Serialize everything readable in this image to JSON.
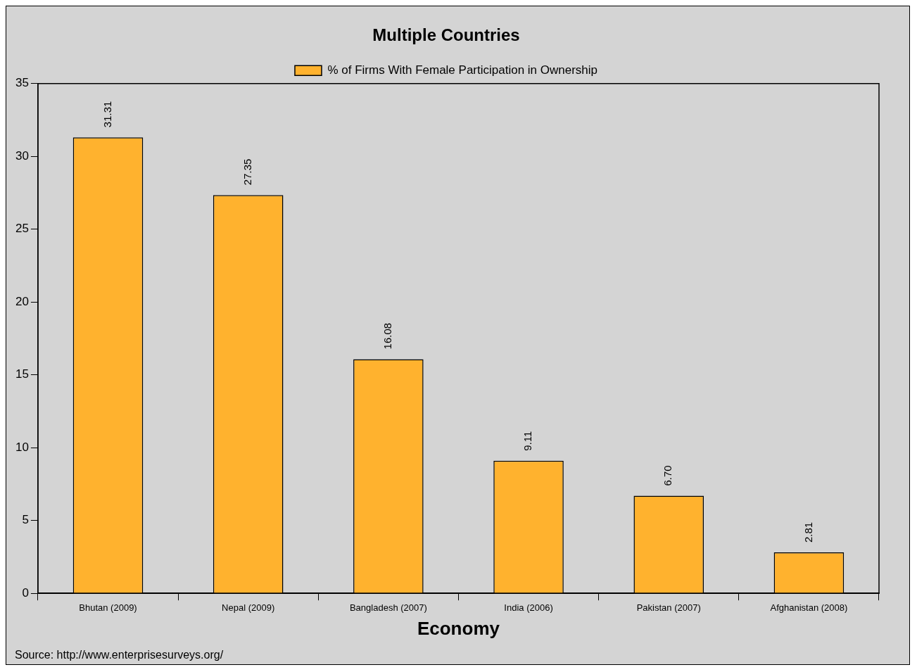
{
  "chart_data": {
    "type": "bar",
    "title": "Multiple Countries",
    "xlabel": "Economy",
    "categories": [
      "Bhutan (2009)",
      "Nepal (2009)",
      "Bangladesh (2007)",
      "India (2006)",
      "Pakistan (2007)",
      "Afghanistan (2008)"
    ],
    "series": [
      {
        "name": "% of Firms With Female Participation in Ownership",
        "color": "#ffb22e",
        "values": [
          31.31,
          27.35,
          16.08,
          9.11,
          6.7,
          2.81
        ]
      }
    ],
    "value_labels": [
      "31.31",
      "27.35",
      "16.08",
      "9.11",
      "6.70",
      "2.81"
    ],
    "ylim": [
      0,
      35
    ],
    "yticks": [
      0,
      5,
      10,
      15,
      20,
      25,
      30,
      35
    ],
    "grid": false,
    "legend": "top",
    "annotations": [
      "Source: http://www.enterprisesurveys.org/"
    ]
  }
}
